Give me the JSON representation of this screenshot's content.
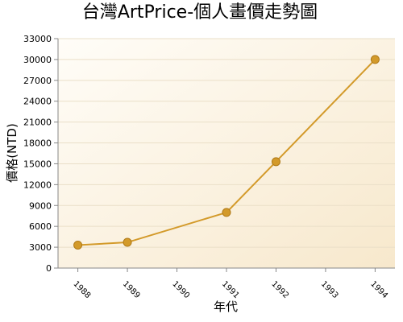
{
  "chart_data": {
    "type": "line",
    "title": "台灣ArtPrice-個人畫價走勢圖",
    "x_label": "年代",
    "y_label": "價格(NTD)",
    "x": [
      1988,
      1989,
      1991,
      1992,
      1994
    ],
    "series": [
      {
        "name": "價格",
        "color": "#d39a2a",
        "values": [
          3300,
          3700,
          8000,
          15300,
          30000
        ]
      }
    ],
    "xlim": [
      1987.6,
      1994.4
    ],
    "xticks": [
      1988,
      1989,
      1990,
      1991,
      1992,
      1993,
      1994
    ],
    "ylim": [
      0,
      33000
    ],
    "yticks": [
      0,
      3000,
      6000,
      9000,
      12000,
      15000,
      18000,
      21000,
      24000,
      27000,
      30000,
      33000
    ],
    "grid": true
  }
}
